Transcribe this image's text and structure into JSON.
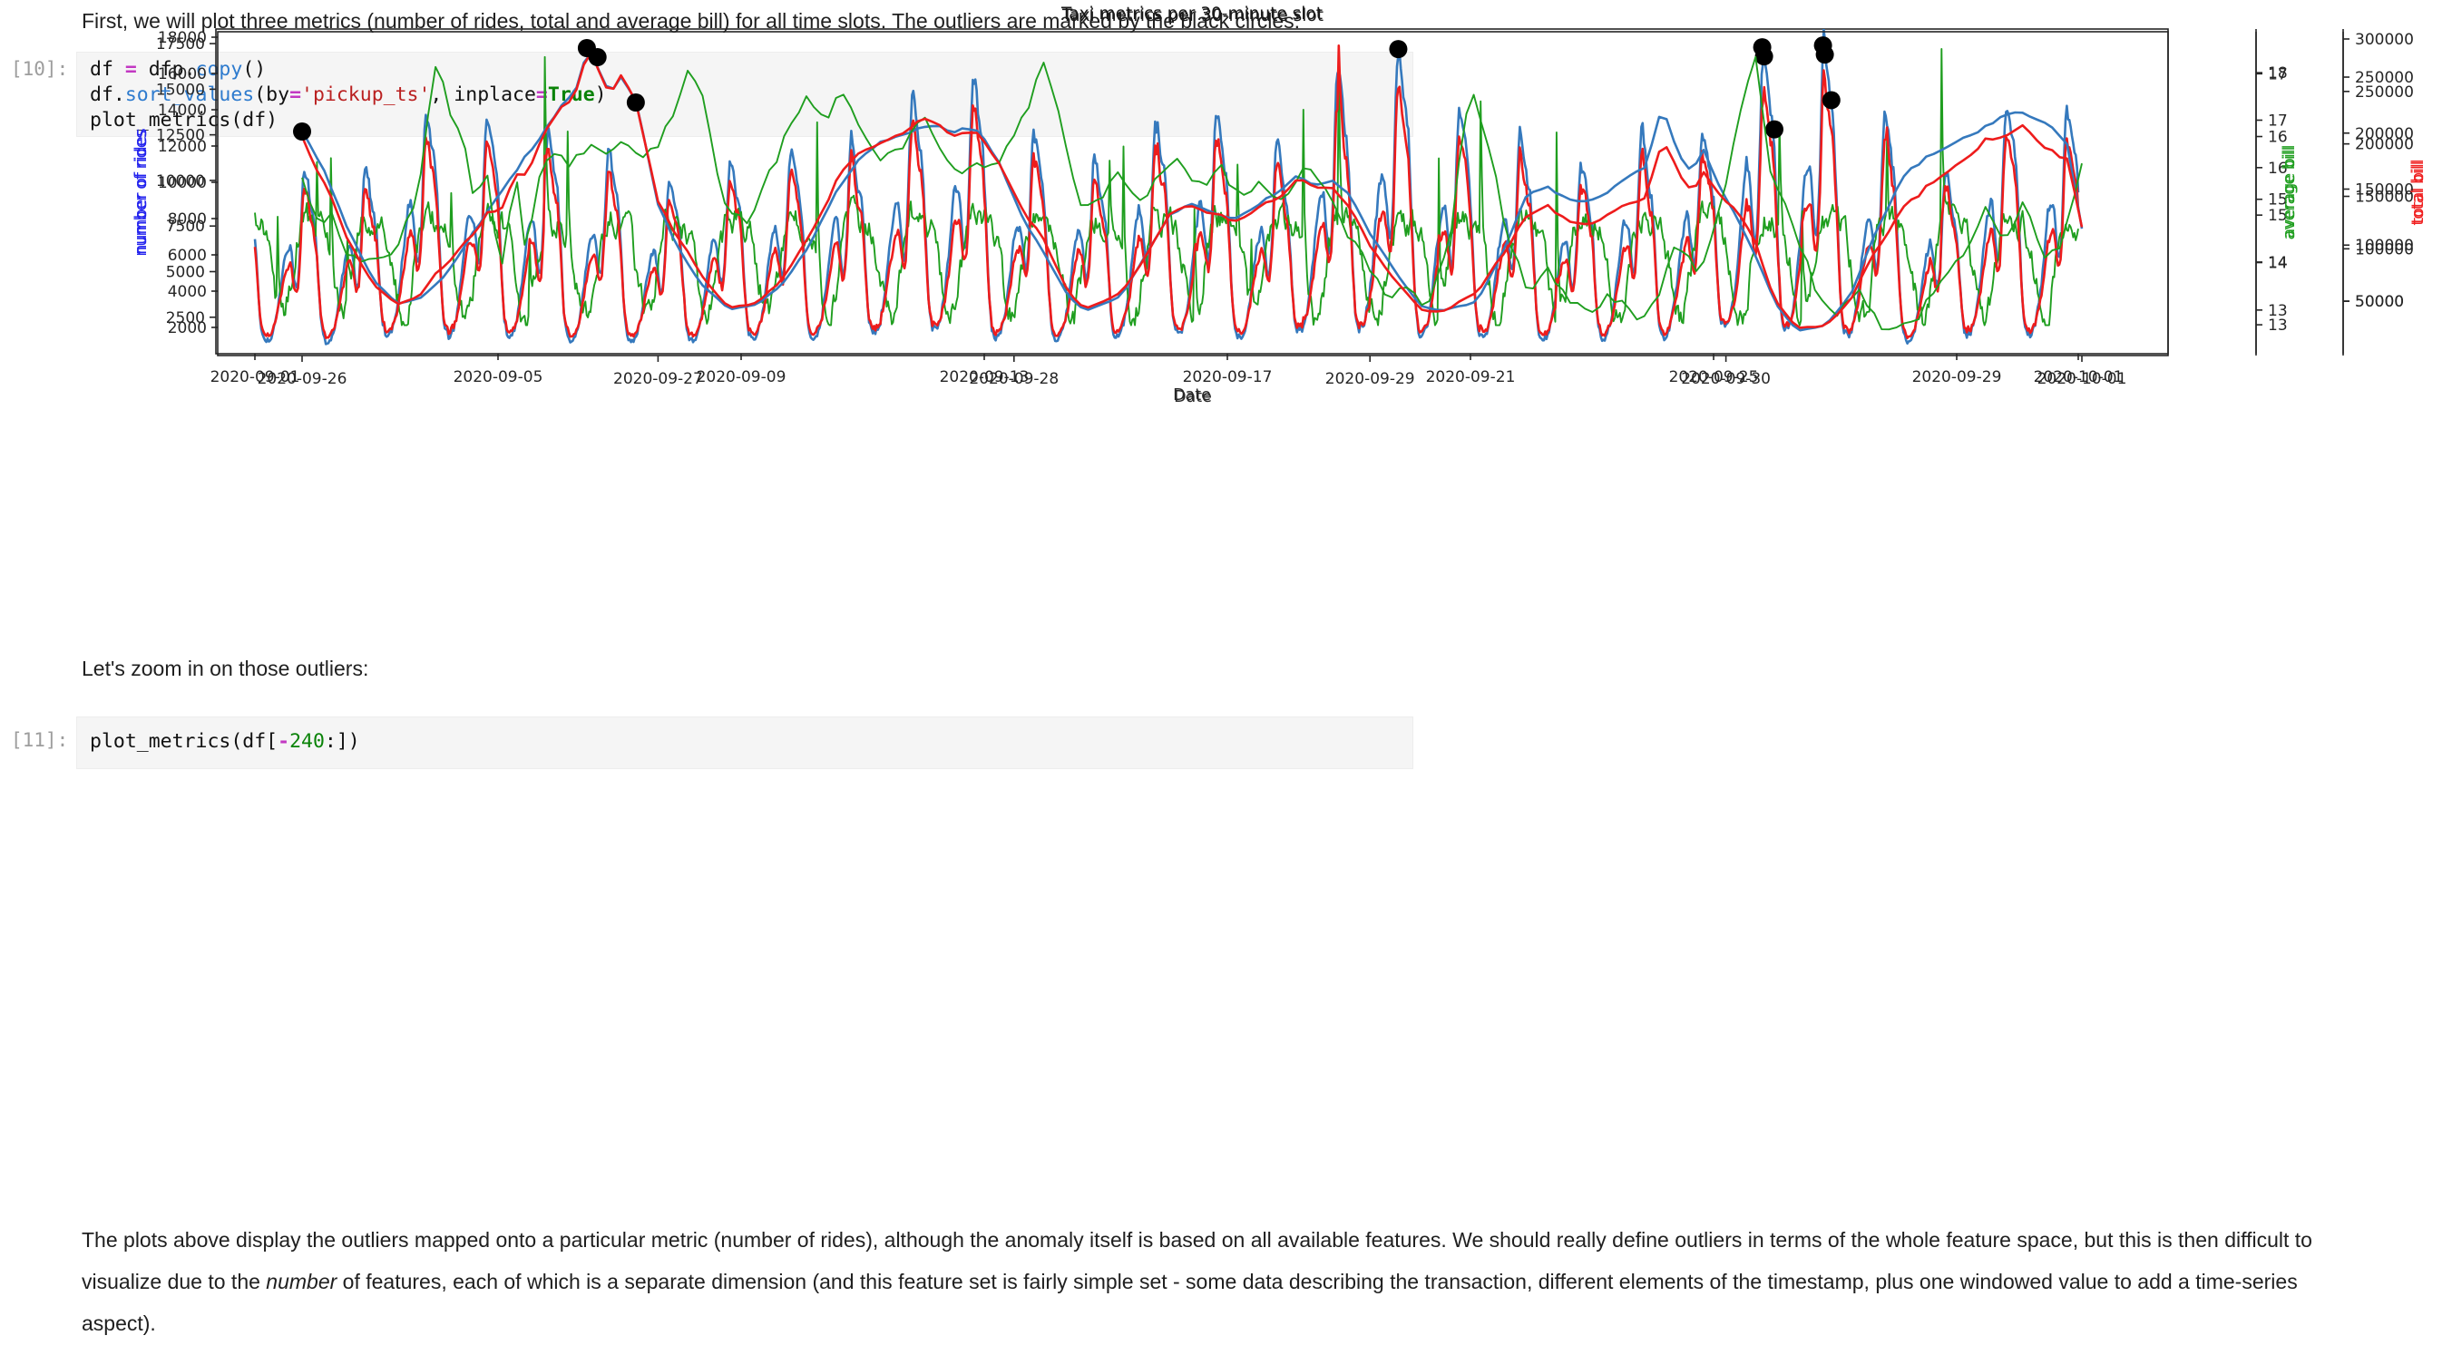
{
  "notebook": {
    "md_intro": "First, we will plot three metrics (number of rides, total and average bill) for all time slots. The outliers are marked by the black circles:",
    "md_zoom": "Let's zoom in on those outliers:",
    "md_outro": {
      "p1": "The plots above display the outliers mapped onto a particular metric (number of rides), although the anomaly itself is based on all available features. We should really define outliers in terms of the whole feature space, but this is then difficult to visualize due to the ",
      "italic": "number",
      "p2": " of features, each of which is a separate dimension (and this feature set is fairly simple set - some data describing the transaction, different elements of the timestamp, plus one windowed value to add a time-series aspect)."
    },
    "cell10": {
      "prompt": "[10]:",
      "lines": [
        [
          {
            "t": "df "
          },
          {
            "t": "=",
            "c": "op"
          },
          {
            "t": " dfp."
          },
          {
            "t": "copy",
            "c": "fn"
          },
          {
            "t": "()"
          }
        ],
        [
          {
            "t": "df."
          },
          {
            "t": "sort_values",
            "c": "fn"
          },
          {
            "t": "(by"
          },
          {
            "t": "=",
            "c": "op"
          },
          {
            "t": "'pickup_ts'",
            "c": "str"
          },
          {
            "t": ", inplace"
          },
          {
            "t": "=",
            "c": "op"
          },
          {
            "t": "True",
            "c": "kw"
          },
          {
            "t": ")"
          }
        ],
        [
          {
            "t": "plot_metrics(df)"
          }
        ]
      ]
    },
    "cell11": {
      "prompt": "[11]:",
      "lines": [
        [
          {
            "t": "plot_metrics(df["
          },
          {
            "t": "-",
            "c": "op"
          },
          {
            "t": "240",
            "c": "num"
          },
          {
            "t": ":])"
          }
        ]
      ]
    }
  },
  "colors": {
    "rides_line": "#3579bd",
    "avg_line": "#1f9e1f",
    "total_line": "#ee1c1c",
    "rides_label": "#2222ee",
    "avg_label": "#1f9e1f",
    "total_label": "#f02020",
    "outlier": "#000000",
    "axis_text": "#262626",
    "title_text": "#1a1a1a"
  },
  "chart_data": [
    {
      "id": "fig1",
      "type": "line",
      "title": "Taxi metrics per 30-minute slot",
      "xlabel": "Date",
      "slot_minutes": 30,
      "days": 30,
      "marker_note": "outliers marked by black circles",
      "x_tick_labels": [
        "2020-09-01",
        "2020-09-05",
        "2020-09-09",
        "2020-09-13",
        "2020-09-17",
        "2020-09-21",
        "2020-09-25",
        "2020-09-29",
        "2020-10-01"
      ],
      "x_tick_days": [
        0,
        4,
        8,
        12,
        16,
        20,
        24,
        28,
        30
      ],
      "axes": [
        {
          "id": "rides",
          "label": "number of rides",
          "side": "left",
          "ticks": [
            2500,
            5000,
            7500,
            10000,
            12500,
            15000,
            17500
          ],
          "range": [
            500,
            18300
          ]
        },
        {
          "id": "avg",
          "label": "average bill",
          "side": "right",
          "ticks": [
            13,
            14,
            15,
            16,
            17,
            18
          ],
          "range": [
            12.08,
            18.92
          ]
        },
        {
          "id": "total",
          "label": "total bill",
          "side": "right2",
          "ticks": [
            50000,
            100000,
            150000,
            200000,
            250000,
            300000
          ],
          "range": [
            0,
            309500
          ]
        }
      ],
      "series_names": [
        "number of rides",
        "average bill",
        "total bill"
      ],
      "synth": "daily",
      "seed": 91,
      "daily_peaks_rides": [
        [
          "2020-09-01",
          10400
        ],
        [
          "2020-09-02",
          10600
        ],
        [
          "2020-09-03",
          13800
        ],
        [
          "2020-09-04",
          13500
        ],
        [
          "2020-09-05",
          13000
        ],
        [
          "2020-09-06",
          11600
        ],
        [
          "2020-09-07",
          10000
        ],
        [
          "2020-09-08",
          11000
        ],
        [
          "2020-09-09",
          11600
        ],
        [
          "2020-09-10",
          12200
        ],
        [
          "2020-09-11",
          14600
        ],
        [
          "2020-09-12",
          15900
        ],
        [
          "2020-09-13",
          12600
        ],
        [
          "2020-09-14",
          11500
        ],
        [
          "2020-09-15",
          13500
        ],
        [
          "2020-09-16",
          14000
        ],
        [
          "2020-09-17",
          12000
        ],
        [
          "2020-09-18",
          15500
        ],
        [
          "2020-09-19",
          17200
        ],
        [
          "2020-09-20",
          13800
        ],
        [
          "2020-09-21",
          12500
        ],
        [
          "2020-09-22",
          11000
        ],
        [
          "2020-09-23",
          12500
        ],
        [
          "2020-09-24",
          13000
        ],
        [
          "2020-09-25",
          17300
        ],
        [
          "2020-09-26",
          17400
        ],
        [
          "2020-09-27",
          13100
        ],
        [
          "2020-09-28",
          10400
        ],
        [
          "2020-09-29",
          14400
        ],
        [
          "2020-09-30",
          13900
        ]
      ],
      "outliers": [
        {
          "t": 18.8125,
          "label": "2020-09-19 19:30",
          "rides": 17200
        },
        {
          "t": 24.8,
          "label": "2020-09-25 19:15",
          "rides": 17300
        },
        {
          "t": 24.83,
          "label": "2020-09-25 20:00",
          "rides": 16800
        },
        {
          "t": 25.0,
          "label": "2020-09-26 00:00",
          "rides": 12800
        },
        {
          "t": 25.8,
          "label": "2020-09-26 19:15",
          "rides": 17400
        },
        {
          "t": 25.83,
          "label": "2020-09-26 20:00",
          "rides": 16900
        },
        {
          "t": 25.9375,
          "label": "2020-09-26 22:30",
          "rides": 14400
        }
      ]
    },
    {
      "id": "fig2",
      "type": "line",
      "title": "Taxi metrics per 30-minute slot",
      "xlabel": "Date",
      "slot_minutes": 30,
      "days": 5,
      "marker_note": "outliers marked by black circles",
      "x_tick_labels": [
        "2020-09-26",
        "2020-09-27",
        "2020-09-28",
        "2020-09-29",
        "2020-09-30",
        "2020-10-01"
      ],
      "x_tick_days": [
        0,
        1,
        2,
        3,
        4,
        5
      ],
      "axes": [
        {
          "id": "rides",
          "label": "number of rides",
          "side": "left",
          "ticks": [
            2000,
            4000,
            6000,
            8000,
            10000,
            12000,
            14000,
            16000,
            18000
          ],
          "range": [
            450,
            18300
          ]
        },
        {
          "id": "avg",
          "label": "average bill",
          "side": "right",
          "ticks": [
            13,
            14,
            15,
            16,
            17
          ],
          "range": [
            12.51,
            17.67
          ]
        },
        {
          "id": "total",
          "label": "total bill",
          "side": "right2",
          "ticks": [
            50000,
            100000,
            150000,
            200000,
            250000
          ],
          "range": [
            1400,
            290500
          ]
        }
      ],
      "series_names": [
        "number of rides",
        "average bill",
        "total bill"
      ],
      "synth": "keypoints",
      "seed": 17,
      "rides_keypoints": [
        [
          0,
          12800
        ],
        [
          0.06,
          10800
        ],
        [
          0.12,
          7800
        ],
        [
          0.2,
          4600
        ],
        [
          0.27,
          3300
        ],
        [
          0.33,
          3600
        ],
        [
          0.4,
          4800
        ],
        [
          0.48,
          7200
        ],
        [
          0.55,
          9200
        ],
        [
          0.62,
          11200
        ],
        [
          0.68,
          12800
        ],
        [
          0.73,
          14200
        ],
        [
          0.78,
          15400
        ],
        [
          0.8,
          17400
        ],
        [
          0.82,
          16800
        ],
        [
          0.85,
          15400
        ],
        [
          0.88,
          15100
        ],
        [
          0.9,
          16000
        ],
        [
          0.9375,
          14400
        ],
        [
          0.97,
          11600
        ],
        [
          1.0,
          8800
        ],
        [
          1.05,
          6600
        ],
        [
          1.12,
          4400
        ],
        [
          1.2,
          3000
        ],
        [
          1.28,
          3300
        ],
        [
          1.35,
          4400
        ],
        [
          1.42,
          6400
        ],
        [
          1.5,
          9400
        ],
        [
          1.56,
          11200
        ],
        [
          1.62,
          12200
        ],
        [
          1.68,
          12500
        ],
        [
          1.73,
          12900
        ],
        [
          1.78,
          13200
        ],
        [
          1.83,
          12800
        ],
        [
          1.88,
          13000
        ],
        [
          1.92,
          12400
        ],
        [
          1.97,
          10600
        ],
        [
          2.02,
          8200
        ],
        [
          2.08,
          6200
        ],
        [
          2.15,
          3800
        ],
        [
          2.2,
          2900
        ],
        [
          2.3,
          3700
        ],
        [
          2.38,
          6300
        ],
        [
          2.44,
          8300
        ],
        [
          2.5,
          8800
        ],
        [
          2.56,
          8300
        ],
        [
          2.62,
          8000
        ],
        [
          2.68,
          8700
        ],
        [
          2.75,
          9600
        ],
        [
          2.8,
          10400
        ],
        [
          2.84,
          9900
        ],
        [
          2.9,
          10100
        ],
        [
          2.95,
          9100
        ],
        [
          3.0,
          7200
        ],
        [
          3.06,
          5400
        ],
        [
          3.14,
          3200
        ],
        [
          3.2,
          2900
        ],
        [
          3.3,
          3400
        ],
        [
          3.38,
          6400
        ],
        [
          3.44,
          9300
        ],
        [
          3.5,
          9700
        ],
        [
          3.55,
          9100
        ],
        [
          3.6,
          8900
        ],
        [
          3.66,
          9400
        ],
        [
          3.72,
          10200
        ],
        [
          3.77,
          10800
        ],
        [
          3.8,
          12500
        ],
        [
          3.82,
          14400
        ],
        [
          3.86,
          11800
        ],
        [
          3.9,
          10600
        ],
        [
          3.94,
          11800
        ],
        [
          3.97,
          10200
        ],
        [
          4.02,
          8400
        ],
        [
          4.08,
          6100
        ],
        [
          4.14,
          3300
        ],
        [
          4.2,
          1800
        ],
        [
          4.28,
          2100
        ],
        [
          4.35,
          3800
        ],
        [
          4.42,
          7200
        ],
        [
          4.5,
          10400
        ],
        [
          4.58,
          11600
        ],
        [
          4.64,
          12100
        ],
        [
          4.7,
          12700
        ],
        [
          4.76,
          13400
        ],
        [
          4.82,
          13900
        ],
        [
          4.87,
          13500
        ],
        [
          4.92,
          13000
        ],
        [
          4.96,
          12100
        ],
        [
          5.0,
          7400
        ]
      ],
      "avg_bill_keypoints": [
        [
          0,
          15.4
        ],
        [
          0.05,
          14.5
        ],
        [
          0.08,
          14.8
        ],
        [
          0.13,
          14.1
        ],
        [
          0.17,
          14.0
        ],
        [
          0.22,
          14.05
        ],
        [
          0.27,
          14.3
        ],
        [
          0.33,
          15.2
        ],
        [
          0.38,
          17.4
        ],
        [
          0.42,
          16.2
        ],
        [
          0.45,
          16.0
        ],
        [
          0.48,
          15.1
        ],
        [
          0.52,
          15.4
        ],
        [
          0.56,
          13.8
        ],
        [
          0.6,
          15.4
        ],
        [
          0.63,
          14.1
        ],
        [
          0.67,
          15.5
        ],
        [
          0.71,
          15.7
        ],
        [
          0.75,
          15.6
        ],
        [
          0.79,
          15.8
        ],
        [
          0.82,
          16.0
        ],
        [
          0.85,
          15.7
        ],
        [
          0.88,
          15.9
        ],
        [
          0.92,
          15.8
        ],
        [
          0.96,
          15.7
        ],
        [
          1.0,
          15.9
        ],
        [
          1.05,
          16.4
        ],
        [
          1.08,
          17.0
        ],
        [
          1.13,
          16.6
        ],
        [
          1.18,
          15.0
        ],
        [
          1.25,
          14.6
        ],
        [
          1.31,
          15.4
        ],
        [
          1.36,
          16.0
        ],
        [
          1.42,
          16.6
        ],
        [
          1.47,
          16.3
        ],
        [
          1.52,
          16.7
        ],
        [
          1.58,
          16.1
        ],
        [
          1.63,
          15.6
        ],
        [
          1.69,
          15.9
        ],
        [
          1.74,
          16.4
        ],
        [
          1.79,
          15.9
        ],
        [
          1.84,
          15.4
        ],
        [
          1.89,
          15.6
        ],
        [
          1.94,
          15.5
        ],
        [
          1.99,
          15.9
        ],
        [
          2.04,
          16.5
        ],
        [
          2.08,
          17.3
        ],
        [
          2.13,
          16.3
        ],
        [
          2.18,
          15.0
        ],
        [
          2.23,
          14.9
        ],
        [
          2.29,
          15.5
        ],
        [
          2.35,
          15.0
        ],
        [
          2.4,
          15.3
        ],
        [
          2.46,
          15.6
        ],
        [
          2.52,
          15.2
        ],
        [
          2.58,
          15.5
        ],
        [
          2.64,
          15.0
        ],
        [
          2.7,
          15.3
        ],
        [
          2.76,
          14.9
        ],
        [
          2.82,
          15.5
        ],
        [
          2.88,
          15.1
        ],
        [
          2.94,
          14.4
        ],
        [
          3.0,
          13.9
        ],
        [
          3.05,
          13.4
        ],
        [
          3.1,
          13.6
        ],
        [
          3.16,
          13.3
        ],
        [
          3.22,
          14.2
        ],
        [
          3.28,
          16.8
        ],
        [
          3.33,
          15.9
        ],
        [
          3.38,
          14.6
        ],
        [
          3.44,
          13.5
        ],
        [
          3.5,
          13.9
        ],
        [
          3.56,
          13.3
        ],
        [
          3.62,
          13.2
        ],
        [
          3.68,
          13.5
        ],
        [
          3.74,
          13.1
        ],
        [
          3.8,
          13.3
        ],
        [
          3.86,
          14.4
        ],
        [
          3.92,
          13.8
        ],
        [
          3.97,
          14.5
        ],
        [
          4.03,
          16.1
        ],
        [
          4.08,
          17.4
        ],
        [
          4.13,
          15.3
        ],
        [
          4.19,
          14.6
        ],
        [
          4.26,
          13.4
        ],
        [
          4.32,
          13.2
        ],
        [
          4.38,
          13.5
        ],
        [
          4.45,
          12.9
        ],
        [
          4.52,
          13.0
        ],
        [
          4.6,
          13.6
        ],
        [
          4.68,
          14.2
        ],
        [
          4.73,
          14.9
        ],
        [
          4.78,
          14.3
        ],
        [
          4.84,
          15.0
        ],
        [
          4.9,
          14.0
        ],
        [
          4.95,
          14.4
        ],
        [
          5.0,
          15.5
        ]
      ],
      "outliers": [
        {
          "t": 0,
          "label": "2020-09-26 00:00",
          "rides": 12800
        },
        {
          "t": 0.8,
          "label": "2020-09-26 19:15",
          "rides": 17400
        },
        {
          "t": 0.83,
          "label": "2020-09-26 20:00",
          "rides": 16900
        },
        {
          "t": 0.9375,
          "label": "2020-09-26 22:30",
          "rides": 14400
        }
      ]
    }
  ]
}
